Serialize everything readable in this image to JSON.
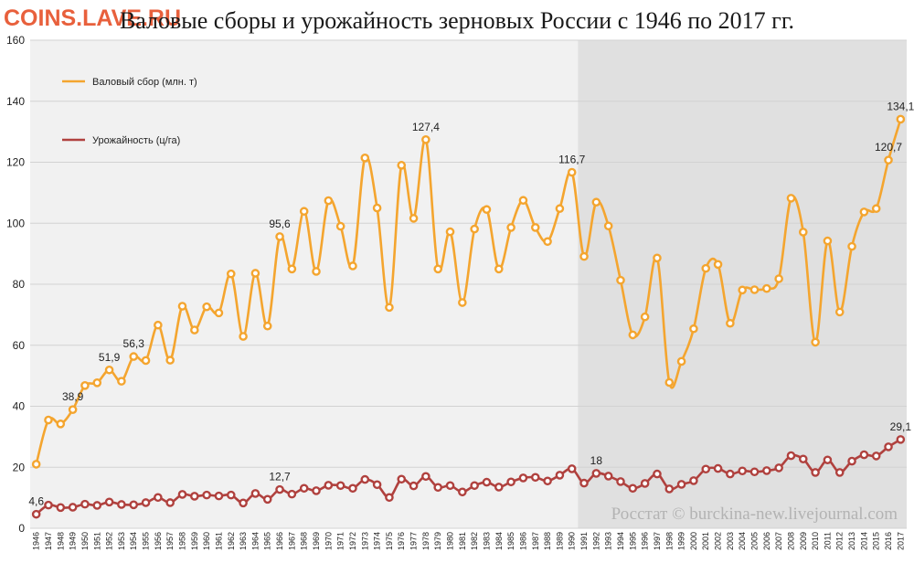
{
  "watermark": "COINS.LAVE.RU",
  "source": "Росстат © burckina-new.livejournal.com",
  "chart_data": {
    "type": "line",
    "title": "Валовые сборы и урожайность зерновых России с 1946 по 2017 гг.",
    "xlabel": "",
    "ylabel": "",
    "ylim": [
      0,
      160
    ],
    "yticks": [
      0,
      20,
      40,
      60,
      80,
      100,
      120,
      140,
      160
    ],
    "grid": "horizontal",
    "legend_position": "top-left",
    "shaded_region_from": "1991",
    "colors": {
      "plot_bg": "#f1f1f1",
      "shaded_bg": "#e0e0e0",
      "grid": "#d2d2d2"
    },
    "x": [
      "1946",
      "1947",
      "1948",
      "1949",
      "1950",
      "1951",
      "1952",
      "1953",
      "1954",
      "1955",
      "1956",
      "1957",
      "1958",
      "1959",
      "1960",
      "1961",
      "1962",
      "1963",
      "1964",
      "1965",
      "1966",
      "1967",
      "1968",
      "1969",
      "1970",
      "1971",
      "1972",
      "1973",
      "1974",
      "1975",
      "1976",
      "1977",
      "1978",
      "1979",
      "1980",
      "1981",
      "1982",
      "1983",
      "1984",
      "1985",
      "1986",
      "1987",
      "1988",
      "1989",
      "1990",
      "1991",
      "1992",
      "1993",
      "1994",
      "1995",
      "1996",
      "1997",
      "1998",
      "1999",
      "2000",
      "2001",
      "2002",
      "2003",
      "2004",
      "2005",
      "2006",
      "2007",
      "2008",
      "2009",
      "2010",
      "2011",
      "2012",
      "2013",
      "2014",
      "2015",
      "2016",
      "2017"
    ],
    "series": [
      {
        "name": "Валовый сбор (млн. т)",
        "color": "#f4a52f",
        "values": [
          21,
          35.5,
          34.2,
          38.9,
          46.8,
          47.7,
          51.9,
          48.2,
          56.3,
          55,
          66.6,
          55.1,
          72.8,
          65,
          72.6,
          70.6,
          83.4,
          62.9,
          83.6,
          66.3,
          95.6,
          85,
          103.9,
          84.2,
          107.4,
          99,
          86,
          121.4,
          105,
          72.4,
          119,
          101.6,
          127.4,
          85,
          97.2,
          74,
          98.1,
          104.5,
          85,
          98.6,
          107.5,
          98.6,
          94,
          104.8,
          116.7,
          89.1,
          106.9,
          99.1,
          81.3,
          63.4,
          69.3,
          88.6,
          47.8,
          54.7,
          65.4,
          85.2,
          86.5,
          67.2,
          78.1,
          78.2,
          78.6,
          81.8,
          108.2,
          97.1,
          61,
          94.2,
          70.9,
          92.4,
          103.7,
          104.8,
          120.7,
          134.1
        ],
        "labels": {
          "1949": "38,9",
          "1952": "51,9",
          "1954": "56,3",
          "1966": "95,6",
          "1978": "127,4",
          "1990": "116,7",
          "2016": "120,7",
          "2017": "134,1"
        }
      },
      {
        "name": "Урожайность (ц/га)",
        "color": "#b0413e",
        "values": [
          4.6,
          7.6,
          6.8,
          6.9,
          7.9,
          7.5,
          8.6,
          7.8,
          7.7,
          8.4,
          10.1,
          8.4,
          11.1,
          10.5,
          10.9,
          10.6,
          10.9,
          8.3,
          11.4,
          9.5,
          12.7,
          11.2,
          13.1,
          12.3,
          14.1,
          14,
          13.1,
          16,
          14.3,
          10.1,
          16.1,
          13.9,
          17,
          13.4,
          14,
          11.9,
          14,
          15.1,
          13.5,
          15.2,
          16.5,
          16.7,
          15.5,
          17.4,
          19.5,
          14.8,
          18,
          17.1,
          15.3,
          13.1,
          14.7,
          17.8,
          12.9,
          14.4,
          15.6,
          19.4,
          19.6,
          17.8,
          18.8,
          18.5,
          18.9,
          19.8,
          23.8,
          22.7,
          18.3,
          22.4,
          18.3,
          22.0,
          24.1,
          23.7,
          26.7,
          29.1
        ],
        "labels": {
          "1946": "4,6",
          "1966": "12,7",
          "1992": "18",
          "2017": "29,1"
        }
      }
    ]
  }
}
